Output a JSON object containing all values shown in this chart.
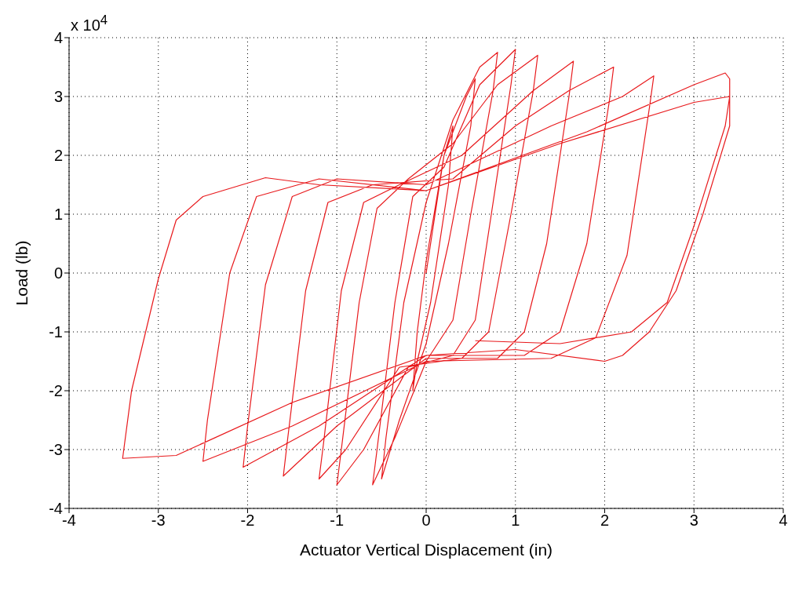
{
  "chart_data": {
    "type": "line",
    "xlabel": "Actuator Vertical Displacement (in)",
    "ylabel": "Load (lb)",
    "annotations": [
      "x 10$^{4}$"
    ],
    "xlim": [
      -4,
      4
    ],
    "xticks": [
      -4,
      -3,
      -2,
      -1,
      0,
      1,
      2,
      3,
      4
    ],
    "ylim": [
      -4,
      4
    ],
    "yticks": [
      -4,
      -3,
      -2,
      -1,
      0,
      1,
      2,
      3,
      4
    ],
    "grid": true,
    "legend": false,
    "marker": "none",
    "line_style": "solid",
    "series": [
      {
        "color": "#e8191c",
        "x": [
          0,
          0.1,
          0.2,
          0.3,
          0.25,
          0.05,
          -0.1,
          -0.15,
          -0.1,
          0,
          0.2,
          0.45,
          0.55,
          0.5,
          0.25,
          0,
          -0.3,
          -0.5,
          -0.45,
          -0.25,
          0,
          0.3,
          0.6,
          0.8,
          0.75,
          0.5,
          0.3,
          0,
          -0.35,
          -0.6,
          -0.55,
          -0.35,
          -0.15,
          0.2,
          0.6,
          1.0,
          0.95,
          0.75,
          0.55,
          0.3,
          -0.2,
          -0.7,
          -1.0,
          -0.95,
          -0.75,
          -0.55,
          -0.2,
          0.3,
          0.8,
          1.25,
          1.2,
          0.95,
          0.7,
          0.4,
          -0.3,
          -0.9,
          -1.2,
          -1.15,
          -0.95,
          -0.7,
          -0.3,
          0.4,
          1.2,
          1.65,
          1.6,
          1.35,
          1.1,
          0.8,
          0,
          -1.0,
          -1.6,
          -1.55,
          -1.35,
          -1.1,
          -0.6,
          0.3,
          1.0,
          1.6,
          2.1,
          2.05,
          1.8,
          1.5,
          1.1,
          0,
          -1.2,
          -2.05,
          -2.0,
          -1.8,
          -1.5,
          -1.0,
          0,
          1.4,
          2.2,
          2.55,
          2.5,
          2.25,
          1.9,
          1.4,
          0,
          -1.5,
          -2.5,
          -2.45,
          -2.2,
          -1.9,
          -1.2,
          0,
          1.8,
          3.0,
          3.35,
          3.4,
          3.4,
          3.1,
          2.8,
          2.5,
          2.2,
          2.0,
          1.0,
          0,
          -1.5,
          -2.8,
          -3.4,
          -3.3,
          -3.0,
          -2.8,
          -2.5,
          -1.8,
          -1.2,
          0,
          1.5,
          3.0,
          3.4,
          3.35,
          3.0,
          2.7,
          2.3,
          1.5,
          0.55
        ],
        "values": [
          0,
          1,
          2,
          2.5,
          1.5,
          -0.5,
          -1.5,
          -2.0,
          -1,
          0.2,
          2.0,
          3.0,
          3.3,
          2.5,
          0.5,
          -1.2,
          -2.5,
          -3.5,
          -2.8,
          -0.5,
          1.2,
          2.6,
          3.5,
          3.75,
          3.1,
          1.0,
          -0.8,
          -1.5,
          -2.8,
          -3.6,
          -3.0,
          -0.5,
          1.3,
          1.8,
          3.2,
          3.8,
          3.2,
          1.2,
          -0.8,
          -1.4,
          -1.6,
          -3.0,
          -3.6,
          -3.0,
          -0.5,
          1.1,
          1.6,
          2.2,
          3.2,
          3.7,
          3.1,
          1.0,
          -1.0,
          -1.45,
          -1.6,
          -3.0,
          -3.5,
          -2.9,
          -0.3,
          1.2,
          1.5,
          2.0,
          3.1,
          3.6,
          3.0,
          0.5,
          -1.0,
          -1.45,
          -1.45,
          -2.6,
          -3.45,
          -2.8,
          -0.3,
          1.2,
          1.5,
          1.6,
          2.5,
          3.1,
          3.5,
          2.9,
          0.5,
          -1.0,
          -1.4,
          -1.4,
          -2.6,
          -3.3,
          -2.6,
          -0.2,
          1.3,
          1.6,
          1.5,
          2.5,
          3.0,
          3.35,
          2.8,
          0.3,
          -1.1,
          -1.45,
          -1.5,
          -2.6,
          -3.2,
          -2.5,
          0,
          1.3,
          1.6,
          1.4,
          2.4,
          3.2,
          3.4,
          3.3,
          2.5,
          1.0,
          -0.3,
          -1.0,
          -1.4,
          -1.5,
          -1.3,
          -1.4,
          -2.2,
          -3.1,
          -3.15,
          -2.0,
          -0.1,
          0.9,
          1.3,
          1.62,
          1.5,
          1.4,
          2.2,
          2.9,
          3.0,
          2.5,
          0.8,
          -0.5,
          -1.0,
          -1.2,
          -1.15
        ]
      }
    ]
  }
}
